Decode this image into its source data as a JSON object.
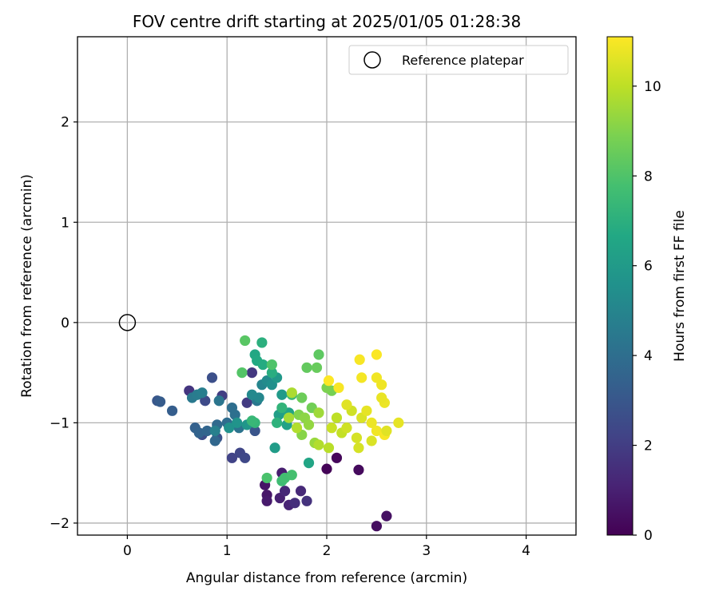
{
  "chart_data": {
    "type": "scatter",
    "title": "FOV centre drift starting at 2025/01/05 01:28:38",
    "xlabel": "Angular distance from reference (arcmin)",
    "ylabel": "Rotation from reference (arcmin)",
    "xlim": [
      -0.5,
      4.5
    ],
    "ylim": [
      -2.12,
      2.85
    ],
    "xticks": [
      0,
      1,
      2,
      3,
      4
    ],
    "yticks": [
      -2,
      -1,
      0,
      1,
      2
    ],
    "grid": true,
    "legend": {
      "placement": "top-right",
      "entries": [
        "Reference platepar"
      ]
    },
    "colorbar": {
      "label": "Hours from first FF file",
      "range": [
        0,
        11.1
      ],
      "ticks": [
        0,
        2,
        4,
        6,
        8,
        10
      ],
      "colormap": "viridis"
    },
    "series": [
      {
        "name": "Reference platepar",
        "marker": "open-circle",
        "points": [
          [
            0,
            0
          ]
        ]
      },
      {
        "marker": "filled-circle",
        "color_by": "hours",
        "points": [
          [
            2.0,
            -1.46,
            0.1
          ],
          [
            2.1,
            -1.35,
            0.2
          ],
          [
            2.32,
            -1.47,
            0.3
          ],
          [
            2.5,
            -2.03,
            0.4
          ],
          [
            2.6,
            -1.93,
            0.5
          ],
          [
            1.38,
            -1.62,
            0.6
          ],
          [
            1.4,
            -1.72,
            0.7
          ],
          [
            1.4,
            -1.78,
            0.8
          ],
          [
            1.55,
            -1.5,
            0.9
          ],
          [
            1.53,
            -1.75,
            1.0
          ],
          [
            1.62,
            -1.82,
            1.1
          ],
          [
            1.58,
            -1.68,
            1.2
          ],
          [
            1.74,
            -1.68,
            1.3
          ],
          [
            1.68,
            -1.8,
            1.5
          ],
          [
            1.8,
            -1.78,
            1.6
          ],
          [
            0.62,
            -0.68,
            1.7
          ],
          [
            1.25,
            -0.5,
            1.8
          ],
          [
            1.2,
            -0.8,
            1.9
          ],
          [
            0.95,
            -0.73,
            2.0
          ],
          [
            1.05,
            -1.35,
            2.2
          ],
          [
            1.13,
            -1.3,
            2.3
          ],
          [
            1.18,
            -1.35,
            2.4
          ],
          [
            0.78,
            -0.78,
            2.5
          ],
          [
            0.75,
            -1.12,
            2.6
          ],
          [
            0.85,
            -0.55,
            2.7
          ],
          [
            0.9,
            -1.15,
            2.8
          ],
          [
            1.28,
            -1.08,
            2.9
          ],
          [
            0.3,
            -0.78,
            3.0
          ],
          [
            0.33,
            -0.79,
            3.2
          ],
          [
            0.45,
            -0.88,
            3.3
          ],
          [
            0.68,
            -1.05,
            3.4
          ],
          [
            0.72,
            -1.1,
            3.5
          ],
          [
            0.8,
            -1.08,
            3.6
          ],
          [
            0.88,
            -1.18,
            3.7
          ],
          [
            0.9,
            -1.02,
            3.8
          ],
          [
            1.0,
            -1.0,
            3.9
          ],
          [
            1.05,
            -0.85,
            4.0
          ],
          [
            1.08,
            -0.92,
            4.1
          ],
          [
            1.12,
            -1.05,
            4.2
          ],
          [
            0.92,
            -0.78,
            4.3
          ],
          [
            1.3,
            -0.78,
            4.4
          ],
          [
            0.65,
            -0.75,
            4.5
          ],
          [
            0.7,
            -0.72,
            4.6
          ],
          [
            0.75,
            -0.7,
            4.7
          ],
          [
            0.88,
            -1.08,
            4.8
          ],
          [
            1.35,
            -0.62,
            5.0
          ],
          [
            1.32,
            -0.75,
            5.1
          ],
          [
            1.25,
            -0.72,
            5.2
          ],
          [
            1.4,
            -0.58,
            5.3
          ],
          [
            1.45,
            -0.62,
            5.5
          ],
          [
            1.02,
            -1.05,
            5.6
          ],
          [
            1.1,
            -1.0,
            5.7
          ],
          [
            1.2,
            -1.02,
            5.8
          ],
          [
            1.5,
            -0.55,
            5.9
          ],
          [
            1.55,
            -0.72,
            6.0
          ],
          [
            1.48,
            -1.25,
            6.1
          ],
          [
            1.52,
            -0.92,
            6.2
          ],
          [
            1.6,
            -1.02,
            6.3
          ],
          [
            1.62,
            -0.9,
            6.4
          ],
          [
            1.82,
            -1.4,
            6.5
          ],
          [
            1.28,
            -0.32,
            6.6
          ],
          [
            1.3,
            -0.38,
            6.7
          ],
          [
            1.36,
            -0.42,
            6.8
          ],
          [
            1.45,
            -0.5,
            6.9
          ],
          [
            1.35,
            -0.2,
            7.0
          ],
          [
            1.5,
            -1.0,
            7.1
          ],
          [
            1.55,
            -0.85,
            7.2
          ],
          [
            1.28,
            -1.0,
            7.3
          ],
          [
            1.25,
            -0.98,
            7.4
          ],
          [
            1.65,
            -0.72,
            7.5
          ],
          [
            1.55,
            -1.58,
            7.6
          ],
          [
            1.58,
            -1.55,
            7.7
          ],
          [
            1.65,
            -1.52,
            7.8
          ],
          [
            1.4,
            -1.55,
            7.9
          ],
          [
            1.45,
            -0.42,
            8.0
          ],
          [
            1.15,
            -0.5,
            8.1
          ],
          [
            1.18,
            -0.18,
            8.2
          ],
          [
            1.92,
            -0.32,
            8.3
          ],
          [
            1.8,
            -0.45,
            8.4
          ],
          [
            1.9,
            -0.45,
            8.5
          ],
          [
            1.75,
            -0.75,
            8.6
          ],
          [
            1.85,
            -0.85,
            8.7
          ],
          [
            2.05,
            -0.68,
            8.8
          ],
          [
            2.0,
            -0.65,
            8.9
          ],
          [
            1.72,
            -0.92,
            9.0
          ],
          [
            1.75,
            -1.12,
            9.1
          ],
          [
            1.78,
            -0.95,
            9.2
          ],
          [
            1.82,
            -1.02,
            9.3
          ],
          [
            1.88,
            -1.2,
            9.4
          ],
          [
            1.92,
            -0.9,
            9.5
          ],
          [
            1.62,
            -0.95,
            9.6
          ],
          [
            1.65,
            -0.7,
            9.7
          ],
          [
            1.7,
            -1.05,
            9.8
          ],
          [
            2.02,
            -1.25,
            9.9
          ],
          [
            2.1,
            -0.95,
            10.0
          ],
          [
            2.15,
            -1.1,
            10.1
          ],
          [
            2.05,
            -1.05,
            10.2
          ],
          [
            2.25,
            -0.88,
            10.3
          ],
          [
            2.3,
            -1.15,
            10.4
          ],
          [
            2.35,
            -0.95,
            10.5
          ],
          [
            2.2,
            -0.82,
            10.6
          ],
          [
            2.4,
            -0.88,
            10.7
          ],
          [
            2.45,
            -1.0,
            10.8
          ],
          [
            2.5,
            -1.08,
            10.9
          ],
          [
            2.58,
            -1.12,
            11.0
          ],
          [
            2.5,
            -0.32,
            11.05
          ],
          [
            2.33,
            -0.37,
            11.0
          ],
          [
            2.35,
            -0.55,
            10.95
          ],
          [
            2.5,
            -0.55,
            10.9
          ],
          [
            2.55,
            -0.62,
            10.85
          ],
          [
            2.58,
            -0.8,
            10.8
          ],
          [
            2.55,
            -0.75,
            10.75
          ],
          [
            2.72,
            -1.0,
            10.7
          ],
          [
            2.6,
            -1.08,
            10.6
          ],
          [
            2.45,
            -1.18,
            10.5
          ],
          [
            2.32,
            -1.25,
            10.4
          ],
          [
            2.2,
            -1.05,
            10.3
          ],
          [
            2.12,
            -0.65,
            11.0
          ],
          [
            2.02,
            -0.58,
            11.1
          ],
          [
            1.92,
            -1.22,
            9.8
          ]
        ]
      }
    ]
  }
}
